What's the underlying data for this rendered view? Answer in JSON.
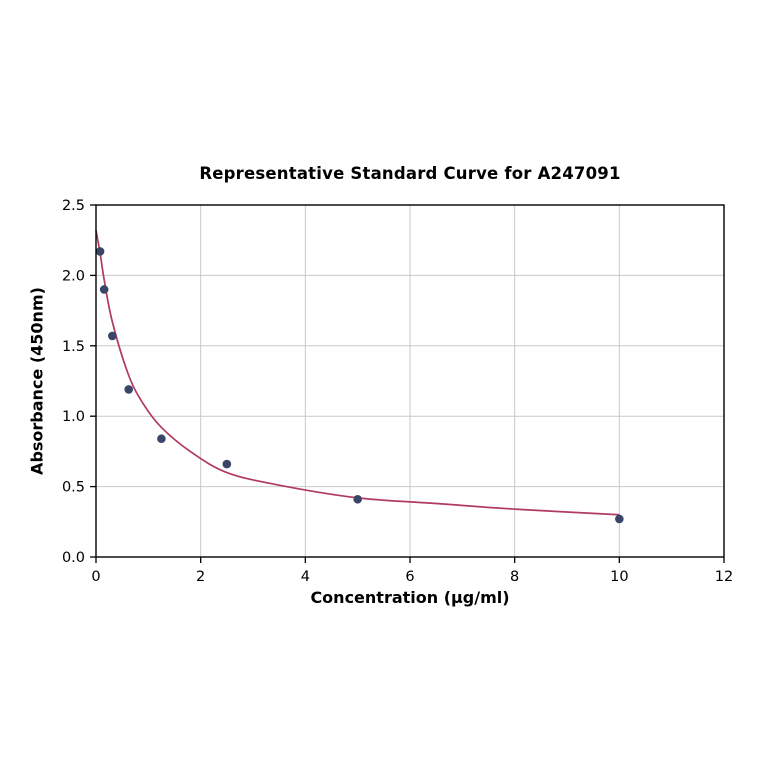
{
  "chart_data": {
    "type": "scatter",
    "title": "Representative Standard Curve for A247091",
    "xlabel": "Concentration (µg/ml)",
    "ylabel": "Absorbance (450nm)",
    "xlim": [
      0,
      12
    ],
    "ylim": [
      0,
      2.5
    ],
    "xticks": {
      "values": [
        0,
        2,
        4,
        6,
        8,
        10,
        12
      ],
      "labels": [
        "0",
        "2",
        "4",
        "6",
        "8",
        "10",
        "12"
      ]
    },
    "yticks": {
      "values": [
        0,
        0.5,
        1.0,
        1.5,
        2.0,
        2.5
      ],
      "labels": [
        "0.0",
        "0.5",
        "1.0",
        "1.5",
        "2.0",
        "2.5"
      ]
    },
    "grid": true,
    "legend": "none",
    "points": [
      [
        0.078,
        2.17
      ],
      [
        0.156,
        1.9
      ],
      [
        0.3125,
        1.57
      ],
      [
        0.625,
        1.19
      ],
      [
        1.25,
        0.84
      ],
      [
        2.5,
        0.66
      ],
      [
        5,
        0.41
      ],
      [
        10,
        0.27
      ]
    ],
    "fit_curve": [
      [
        0,
        2.32
      ],
      [
        0.078,
        2.16
      ],
      [
        0.156,
        1.97
      ],
      [
        0.3125,
        1.67
      ],
      [
        0.625,
        1.29
      ],
      [
        0.9,
        1.09
      ],
      [
        1.25,
        0.92
      ],
      [
        1.8,
        0.75
      ],
      [
        2.5,
        0.6
      ],
      [
        3.5,
        0.51
      ],
      [
        5,
        0.42
      ],
      [
        6.5,
        0.38
      ],
      [
        8,
        0.34
      ],
      [
        10,
        0.3
      ]
    ],
    "colors": {
      "point": "#3a4668",
      "curve": "#b13a62",
      "grid": "#c9c9c9",
      "axis": "#000000",
      "background": "#ffffff"
    }
  }
}
